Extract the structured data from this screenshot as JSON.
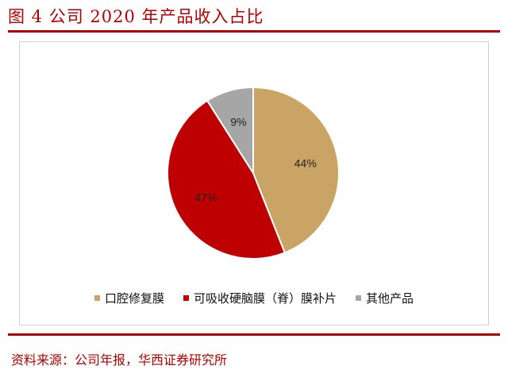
{
  "figure": {
    "title": "图 4   公司 2020 年产品收入占比",
    "source": "资料来源：公司年报，华西证券研究所",
    "accent_color": "#b30000"
  },
  "chart_data": {
    "type": "pie",
    "title": "",
    "legend_position": "bottom",
    "slices": [
      {
        "label": "口腔修复膜",
        "value": 44,
        "display": "44%",
        "color": "#c9a464"
      },
      {
        "label": "可吸收硬脑膜（脊）膜补片",
        "value": 47,
        "display": "47%",
        "color": "#bf0000"
      },
      {
        "label": "其他产品",
        "value": 9,
        "display": "9%",
        "color": "#a6a6a6"
      }
    ]
  }
}
